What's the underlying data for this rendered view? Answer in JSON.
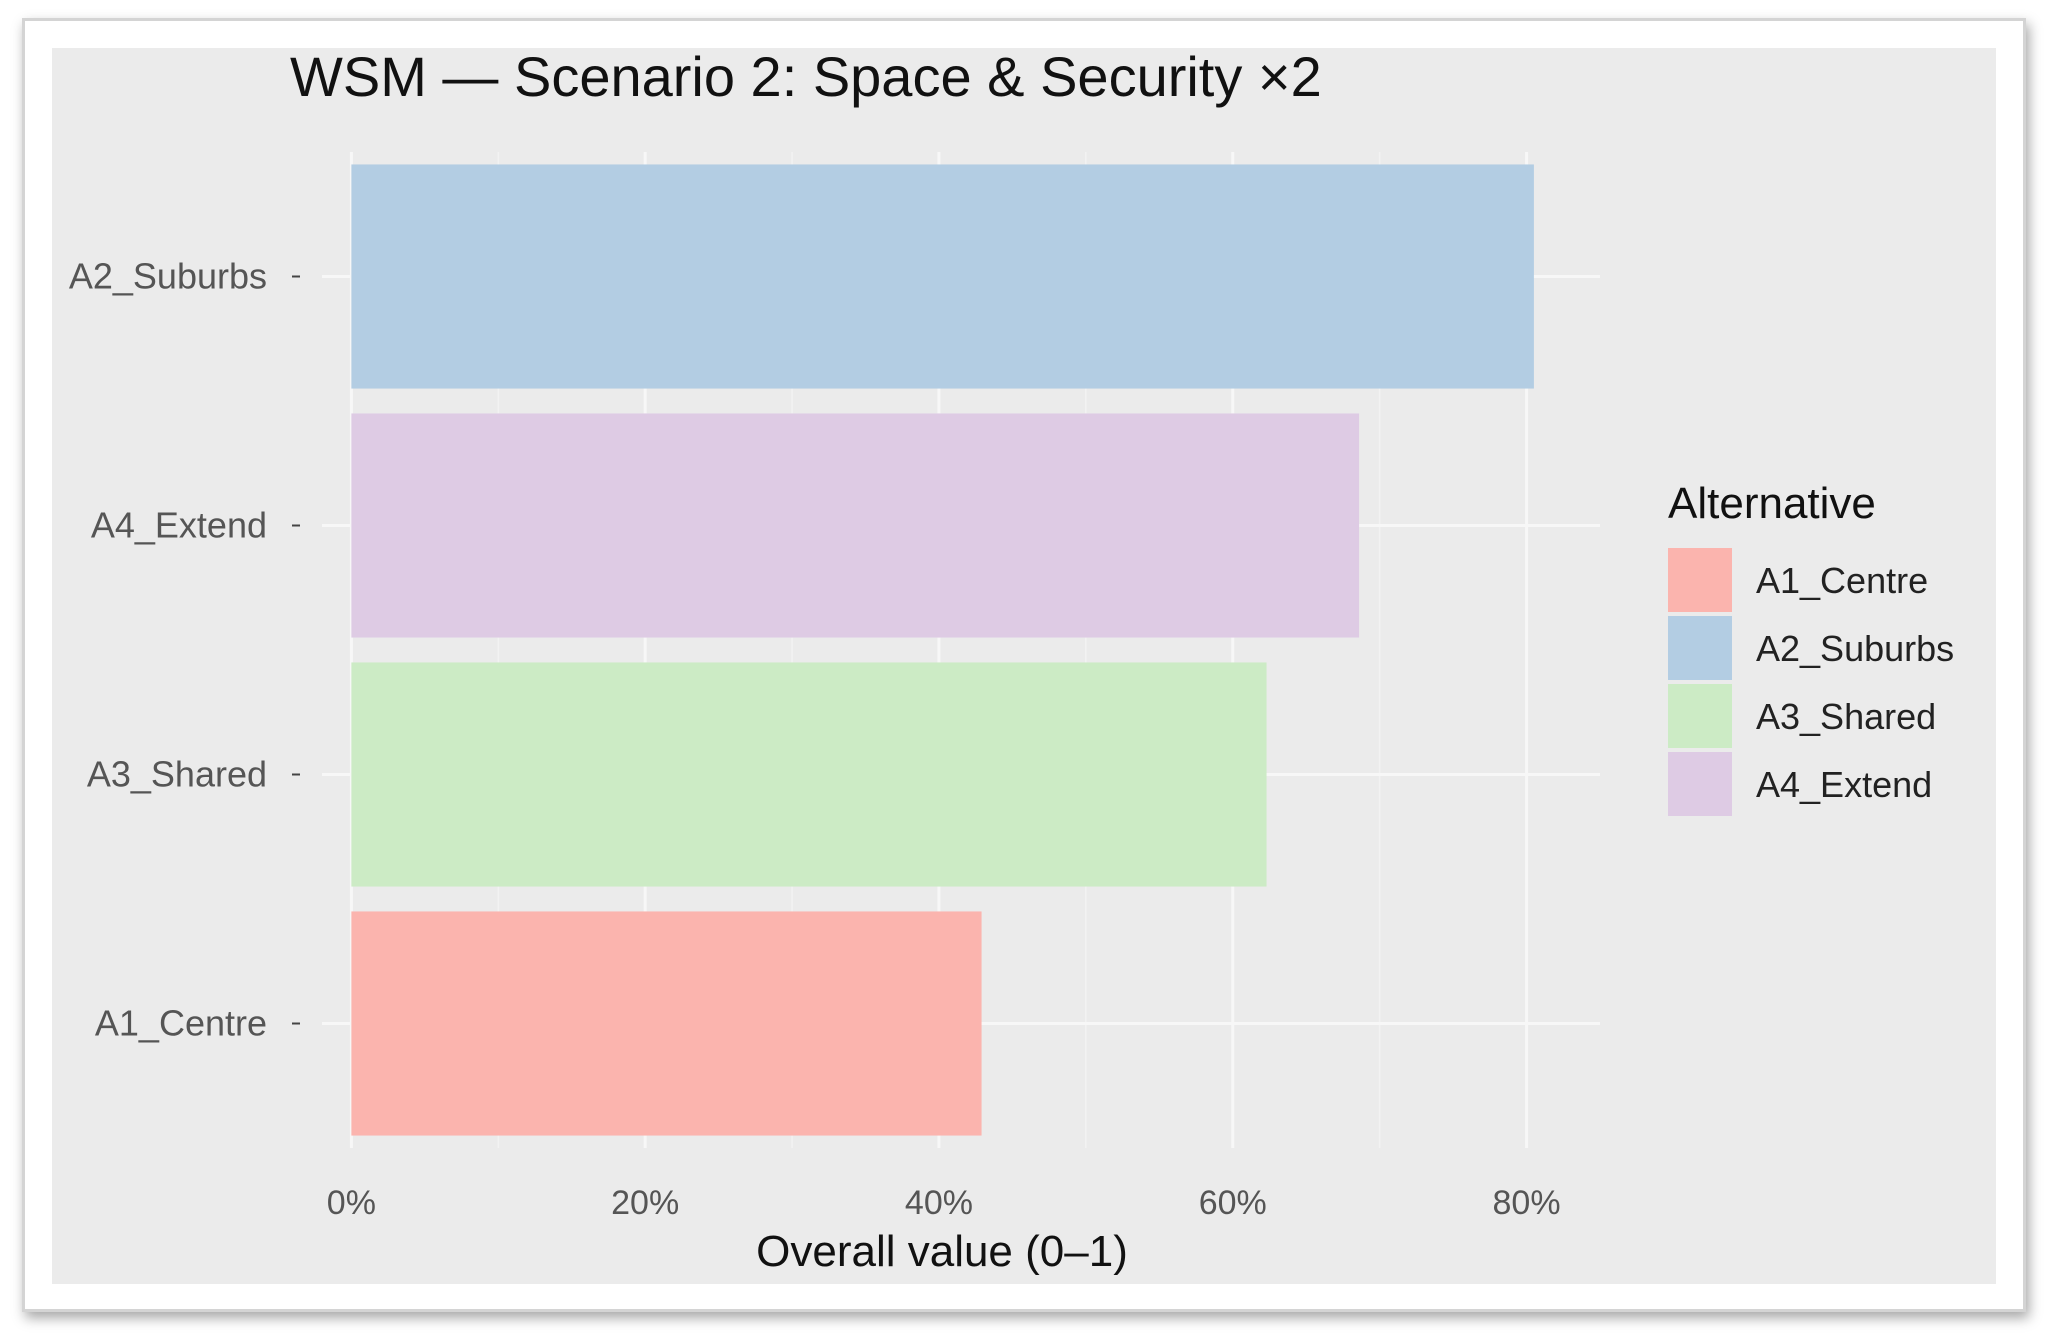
{
  "chart_data": {
    "type": "bar",
    "orientation": "horizontal",
    "title": "WSM — Scenario 2: Space & Security ×2",
    "xlabel": "Overall value (0–1)",
    "ylabel": "",
    "categories": [
      "A2_Suburbs",
      "A4_Extend",
      "A3_Shared",
      "A1_Centre"
    ],
    "values": [
      0.805,
      0.686,
      0.623,
      0.429
    ],
    "xlim": [
      -0.02,
      0.85
    ],
    "x_ticks": [
      0,
      0.2,
      0.4,
      0.6,
      0.8
    ],
    "x_tick_labels": [
      "0%",
      "20%",
      "40%",
      "60%",
      "80%"
    ],
    "grid": true,
    "legend": {
      "title": "Alternative",
      "position": "right",
      "entries": [
        {
          "label": "A1_Centre",
          "color": "#FBB4AE"
        },
        {
          "label": "A2_Suburbs",
          "color": "#B3CDE3"
        },
        {
          "label": "A3_Shared",
          "color": "#CCEBC5"
        },
        {
          "label": "A4_Extend",
          "color": "#DECBE4"
        }
      ]
    },
    "colors": {
      "A1_Centre": "#FBB4AE",
      "A2_Suburbs": "#B3CDE3",
      "A3_Shared": "#CCEBC5",
      "A4_Extend": "#DECBE4",
      "panel_background": "#EBEBEB",
      "grid_major": "#F7F7F7",
      "grid_minor": "#F2F2F2"
    }
  }
}
